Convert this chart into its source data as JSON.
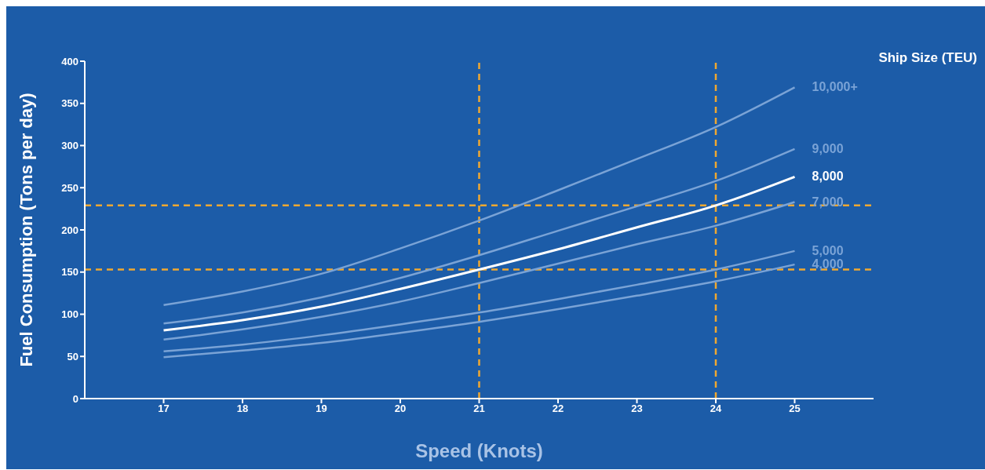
{
  "chart_data": {
    "type": "line",
    "xlabel": "Speed (Knots)",
    "ylabel": "Fuel Consumption (Tons per day)",
    "legend_title": "Ship Size (TEU)",
    "legend": false,
    "marker": "none",
    "line_style": "solid",
    "x": [
      17,
      18,
      19,
      20,
      21,
      22,
      23,
      24,
      25
    ],
    "series": [
      {
        "name": "10,000+",
        "color": "#7aa3d6",
        "values": [
          111,
          127,
          148,
          178,
          211,
          247,
          284,
          322,
          369
        ]
      },
      {
        "name": "9,000",
        "color": "#7aa3d6",
        "values": [
          89,
          102,
          120,
          143,
          170,
          199,
          228,
          258,
          296
        ]
      },
      {
        "name": "8,000",
        "color": "#ffffff",
        "values": [
          81,
          93,
          109,
          130,
          153,
          177,
          203,
          229,
          263
        ]
      },
      {
        "name": "7,000",
        "color": "#7aa3d6",
        "values": [
          70,
          82,
          97,
          115,
          137,
          160,
          183,
          205,
          233
        ]
      },
      {
        "name": "5,000",
        "color": "#7aa3d6",
        "values": [
          56,
          64,
          75,
          88,
          102,
          118,
          135,
          153,
          175
        ]
      },
      {
        "name": "4,000",
        "color": "#7aa3d6",
        "values": [
          49,
          57,
          66,
          78,
          91,
          106,
          122,
          139,
          159
        ]
      }
    ],
    "xlim": [
      16,
      26
    ],
    "xticks": [
      17,
      18,
      19,
      20,
      21,
      22,
      23,
      24,
      25
    ],
    "ylim": [
      0,
      400
    ],
    "yticks": [
      0,
      50,
      100,
      150,
      200,
      250,
      300,
      350,
      400
    ],
    "ref_lines": [
      {
        "axis": "x",
        "value": 21,
        "color": "#f0a830",
        "line_style": "dashed"
      },
      {
        "axis": "x",
        "value": 24,
        "color": "#f0a830",
        "line_style": "dashed"
      },
      {
        "axis": "y",
        "value": 229,
        "color": "#f0a830",
        "line_style": "dashed"
      },
      {
        "axis": "y",
        "value": 153,
        "color": "#f0a830",
        "line_style": "dashed"
      }
    ]
  }
}
